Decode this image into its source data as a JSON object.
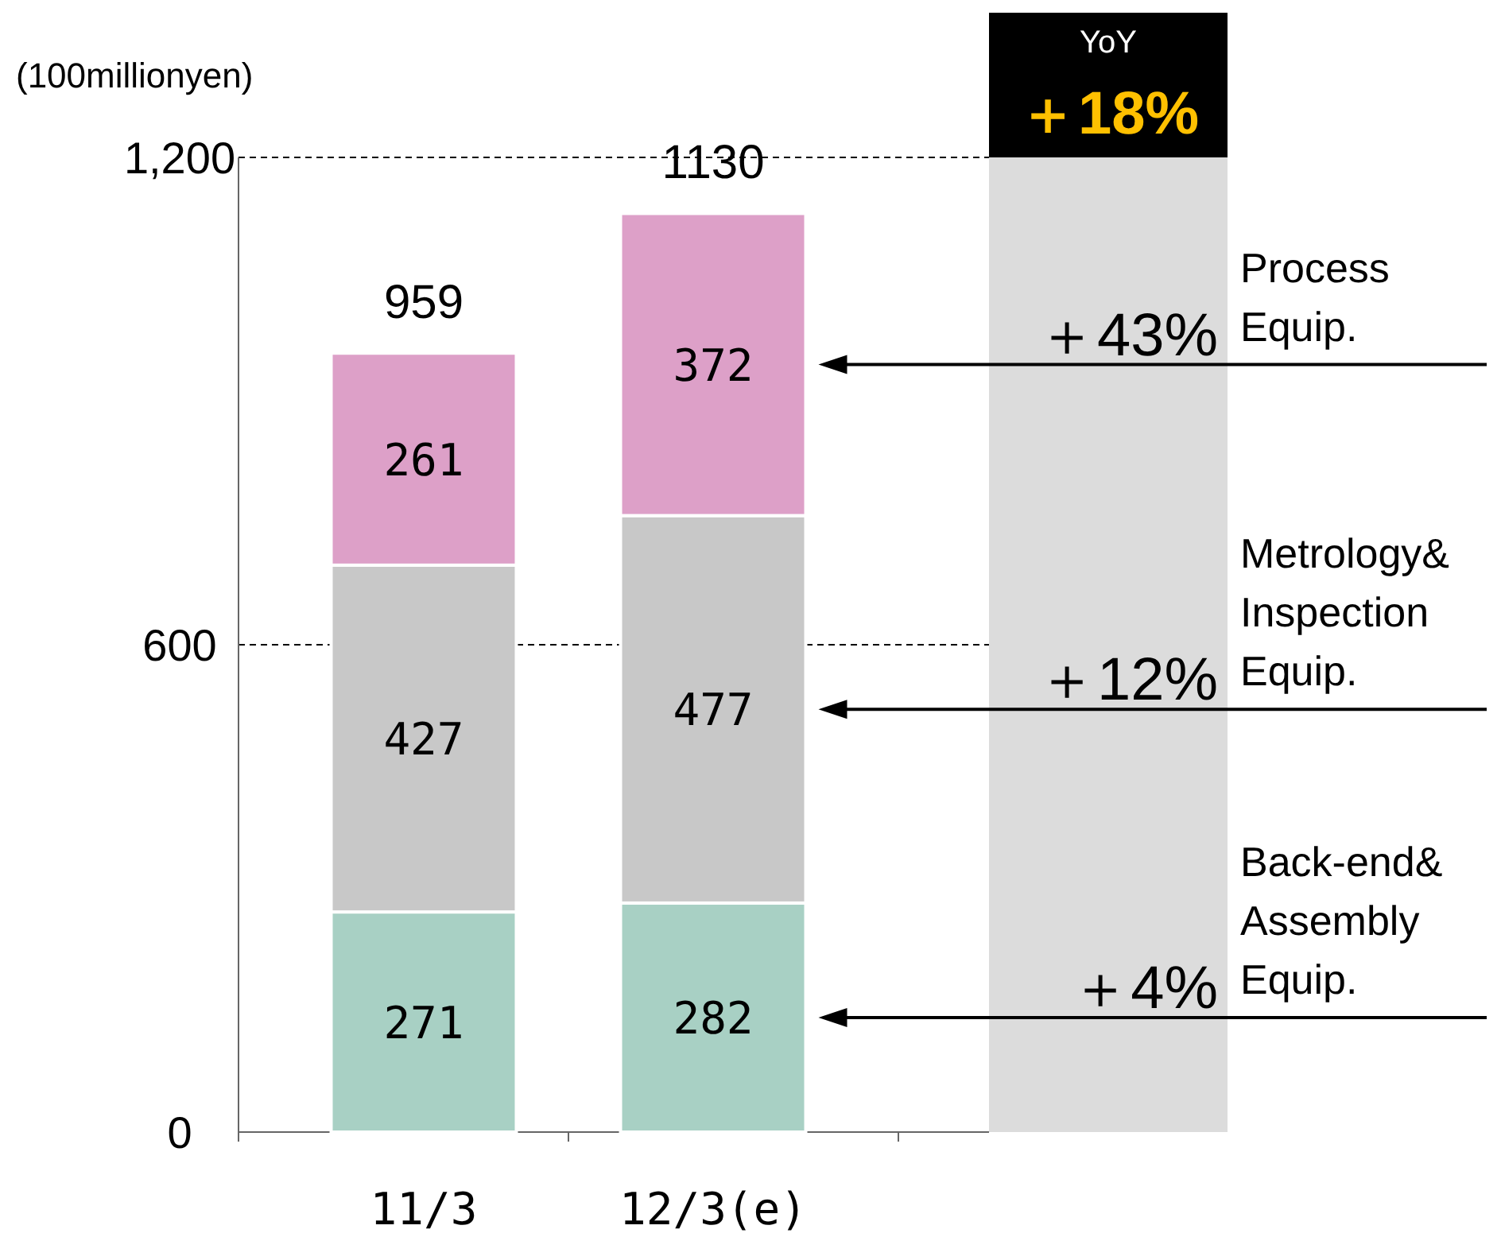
{
  "chart_data": {
    "type": "bar",
    "stacked": true,
    "ylabel": "(100millionyen)",
    "categories": [
      "11/3",
      "12/3(e)"
    ],
    "series": [
      {
        "name": "Back-end& Assembly Equip.",
        "color": "#a8d0c4",
        "values": [
          271,
          282
        ]
      },
      {
        "name": "Metrology& Inspection Equip.",
        "color": "#c8c8c8",
        "values": [
          427,
          477
        ]
      },
      {
        "name": "Process Equip.",
        "color": "#dda0c8",
        "values": [
          261,
          372
        ]
      }
    ],
    "totals": [
      "959",
      "1130"
    ],
    "data_labels": true,
    "ylim": [
      0,
      1200
    ],
    "yticks": [
      0,
      {
        "value": 600,
        "label": "600"
      },
      {
        "value": 1200,
        "label": "1,200"
      }
    ],
    "grid": "y",
    "annotations": [
      "YoY",
      "＋18%",
      "＋4%",
      "＋12%",
      "＋43%"
    ]
  }
}
